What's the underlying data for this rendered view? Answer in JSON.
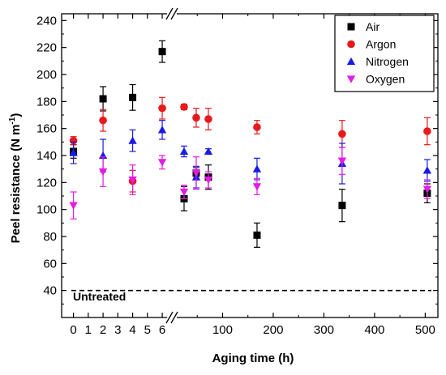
{
  "chart_data": {
    "type": "scatter",
    "xlabel": "Aging time (h)",
    "ylabel": "Peel resistance (N m⁻¹)",
    "ylabel_main": "Peel resistance (N m",
    "ylabel_sup": "-1",
    "ylabel_tail": ")",
    "ylim": [
      20,
      245
    ],
    "y_ticks": [
      40,
      60,
      80,
      100,
      120,
      140,
      160,
      180,
      200,
      220,
      240
    ],
    "x_axis_break": true,
    "x_segment_1": {
      "range": [
        -0.8,
        6.6
      ],
      "ticks": [
        0,
        1,
        2,
        3,
        4,
        5,
        6
      ]
    },
    "x_segment_2": {
      "range": [
        0,
        525
      ],
      "ticks": [
        100,
        200,
        300,
        400,
        500
      ]
    },
    "legend_position": "top-right",
    "grid": false,
    "baseline": {
      "label": "Untreated",
      "y": 40,
      "style": "dashed"
    },
    "series": [
      {
        "name": "Air",
        "color": "#000000",
        "marker": "square",
        "points": [
          {
            "seg": 1,
            "x": 0,
            "y": 143,
            "err": 5
          },
          {
            "seg": 1,
            "x": 2,
            "y": 182,
            "err": 9
          },
          {
            "seg": 1,
            "x": 4,
            "y": 183,
            "err": 9.5
          },
          {
            "seg": 1,
            "x": 6,
            "y": 217,
            "err": 8
          },
          {
            "seg": 2,
            "x": 24,
            "y": 108,
            "err": 9
          },
          {
            "seg": 2,
            "x": 48,
            "y": 127,
            "err": 4
          },
          {
            "seg": 2,
            "x": 72,
            "y": 124,
            "err": 9
          },
          {
            "seg": 2,
            "x": 168,
            "y": 81,
            "err": 9
          },
          {
            "seg": 2,
            "x": 336,
            "y": 103,
            "err": 12
          },
          {
            "seg": 2,
            "x": 504,
            "y": 112,
            "err": 7
          }
        ]
      },
      {
        "name": "Argon",
        "color": "#e8191c",
        "marker": "circle",
        "points": [
          {
            "seg": 1,
            "x": 0,
            "y": 151,
            "err": 3
          },
          {
            "seg": 1,
            "x": 2,
            "y": 166,
            "err": 8
          },
          {
            "seg": 1,
            "x": 4,
            "y": 121,
            "err": 8
          },
          {
            "seg": 1,
            "x": 6,
            "y": 175,
            "err": 8
          },
          {
            "seg": 2,
            "x": 24,
            "y": 176,
            "err": 2
          },
          {
            "seg": 2,
            "x": 48,
            "y": 168,
            "err": 7
          },
          {
            "seg": 2,
            "x": 72,
            "y": 167,
            "err": 8
          },
          {
            "seg": 2,
            "x": 168,
            "y": 161,
            "err": 5
          },
          {
            "seg": 2,
            "x": 336,
            "y": 156,
            "err": 10
          },
          {
            "seg": 2,
            "x": 504,
            "y": 158,
            "err": 10
          }
        ]
      },
      {
        "name": "Nitrogen",
        "color": "#1a1ae6",
        "marker": "triangle-up",
        "points": [
          {
            "seg": 1,
            "x": 0,
            "y": 142,
            "err": 8
          },
          {
            "seg": 1,
            "x": 2,
            "y": 140,
            "err": 12
          },
          {
            "seg": 1,
            "x": 4,
            "y": 151,
            "err": 8
          },
          {
            "seg": 1,
            "x": 6,
            "y": 159,
            "err": 7
          },
          {
            "seg": 2,
            "x": 24,
            "y": 143,
            "err": 4
          },
          {
            "seg": 2,
            "x": 48,
            "y": 124,
            "err": 8
          },
          {
            "seg": 2,
            "x": 72,
            "y": 143,
            "err": 2
          },
          {
            "seg": 2,
            "x": 168,
            "y": 130,
            "err": 8
          },
          {
            "seg": 2,
            "x": 336,
            "y": 134,
            "err": 15
          },
          {
            "seg": 2,
            "x": 504,
            "y": 129,
            "err": 8
          }
        ]
      },
      {
        "name": "Oxygen",
        "color": "#e619e6",
        "marker": "triangle-down",
        "points": [
          {
            "seg": 1,
            "x": 0,
            "y": 103,
            "err": 10
          },
          {
            "seg": 1,
            "x": 2,
            "y": 128,
            "err": 11
          },
          {
            "seg": 1,
            "x": 4,
            "y": 122,
            "err": 11
          },
          {
            "seg": 1,
            "x": 6,
            "y": 135,
            "err": 5
          },
          {
            "seg": 2,
            "x": 24,
            "y": 113,
            "err": 5
          },
          {
            "seg": 2,
            "x": 48,
            "y": 127,
            "err": 12
          },
          {
            "seg": 2,
            "x": 72,
            "y": 122,
            "err": 6
          },
          {
            "seg": 2,
            "x": 168,
            "y": 117,
            "err": 6
          },
          {
            "seg": 2,
            "x": 336,
            "y": 136,
            "err": 10
          },
          {
            "seg": 2,
            "x": 504,
            "y": 115,
            "err": 7
          }
        ]
      }
    ]
  }
}
